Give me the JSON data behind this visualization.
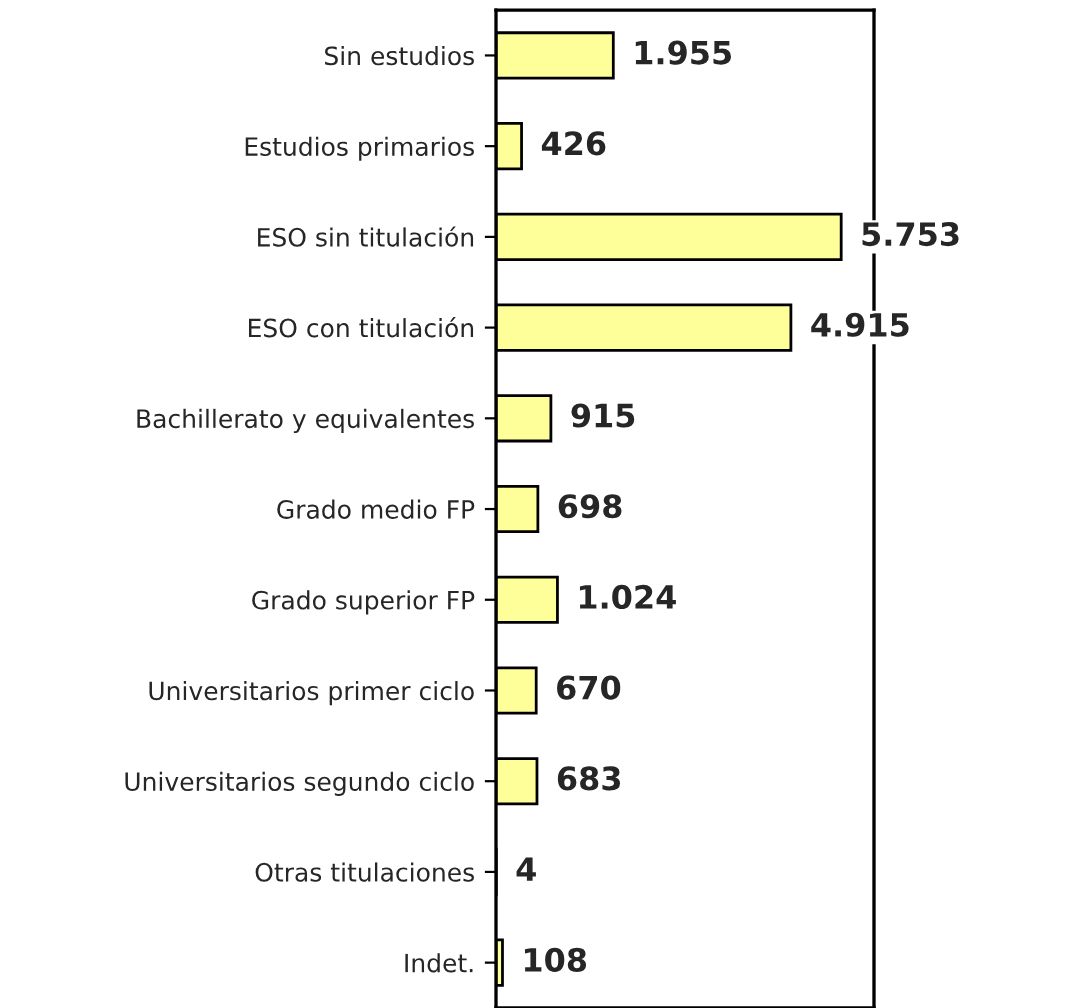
{
  "chart_data": {
    "type": "bar",
    "orientation": "horizontal",
    "categories": [
      "Sin estudios",
      "Estudios primarios",
      "ESO sin titulación",
      "ESO con titulación",
      "Bachillerato y equivalentes",
      "Grado medio FP",
      "Grado superior FP",
      "Universitarios primer ciclo",
      "Universitarios segundo ciclo",
      "Otras titulaciones",
      "Indet."
    ],
    "values": [
      1955,
      426,
      5753,
      4915,
      915,
      698,
      1024,
      670,
      683,
      4,
      108
    ],
    "value_labels": [
      "1.955",
      "426",
      "5.753",
      "4.915",
      "915",
      "698",
      "1.024",
      "670",
      "683",
      "4",
      "108"
    ],
    "color": "#ffff99",
    "xlim": [
      0,
      6300
    ],
    "tick_labels": "y",
    "grid": false,
    "legend": false
  }
}
